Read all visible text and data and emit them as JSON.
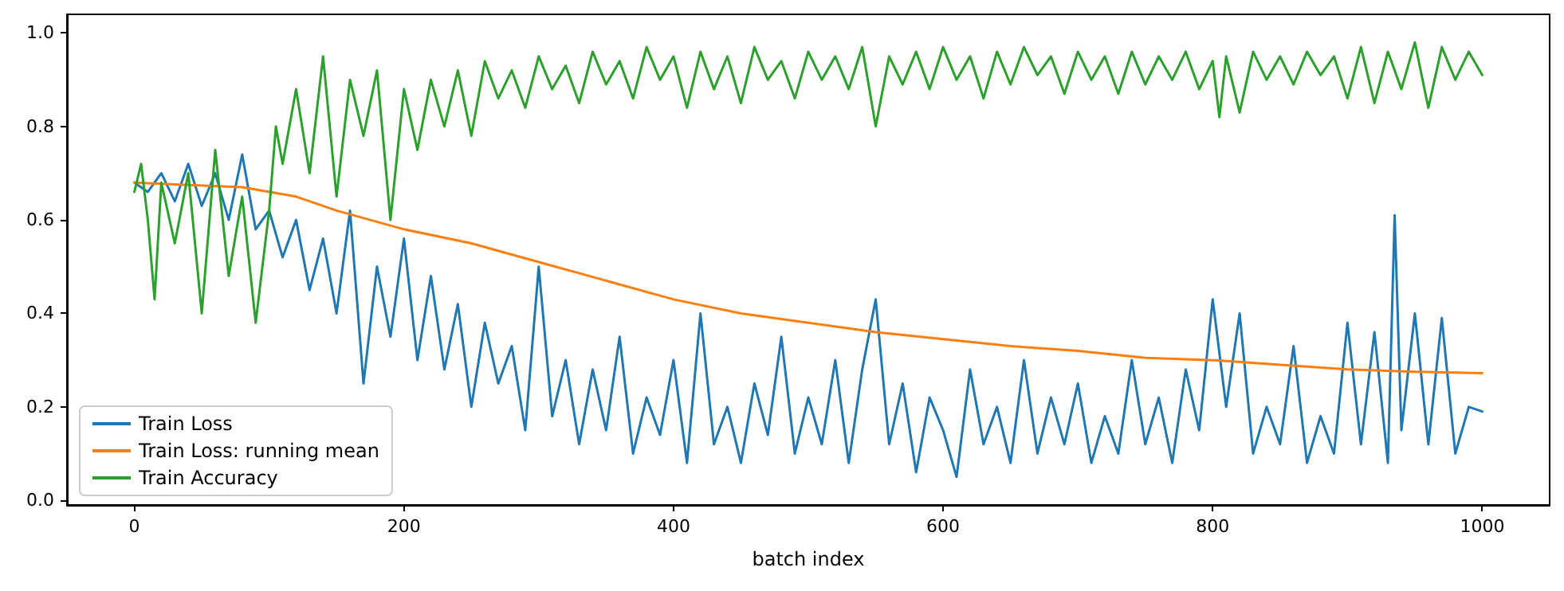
{
  "chart_data": {
    "type": "line",
    "xlabel": "batch index",
    "xlim": [
      -50,
      1050
    ],
    "xticks": [
      0,
      200,
      400,
      600,
      800,
      1000
    ],
    "ylim": [
      -0.01,
      1.04
    ],
    "yticks": [
      {
        "value": 0,
        "label": "0.0"
      },
      {
        "value": 0.2,
        "label": "0.2"
      },
      {
        "value": 0.4,
        "label": "0.4"
      },
      {
        "value": 0.6,
        "label": "0.6"
      },
      {
        "value": 0.8,
        "label": "0.8"
      },
      {
        "value": 1,
        "label": "1.0"
      }
    ],
    "grid": false,
    "legend": "bottom left",
    "marker": "none",
    "line_style": "solid",
    "series": [
      {
        "name": "Train Loss",
        "color": "#1f77b4",
        "x": [
          0,
          10,
          20,
          30,
          40,
          50,
          60,
          70,
          80,
          90,
          100,
          110,
          120,
          130,
          140,
          150,
          160,
          170,
          180,
          190,
          200,
          210,
          220,
          230,
          240,
          250,
          260,
          270,
          280,
          290,
          300,
          310,
          320,
          330,
          340,
          350,
          360,
          370,
          380,
          390,
          400,
          410,
          420,
          430,
          440,
          450,
          460,
          470,
          480,
          490,
          500,
          510,
          520,
          530,
          540,
          550,
          560,
          570,
          580,
          590,
          600,
          610,
          620,
          630,
          640,
          650,
          660,
          670,
          680,
          690,
          700,
          710,
          720,
          730,
          740,
          750,
          760,
          770,
          780,
          790,
          800,
          810,
          820,
          830,
          840,
          850,
          860,
          870,
          880,
          890,
          900,
          910,
          920,
          930,
          935,
          940,
          950,
          960,
          970,
          980,
          990,
          1000
        ],
        "values": [
          0.68,
          0.66,
          0.7,
          0.64,
          0.72,
          0.63,
          0.7,
          0.6,
          0.74,
          0.58,
          0.62,
          0.52,
          0.6,
          0.45,
          0.56,
          0.4,
          0.62,
          0.25,
          0.5,
          0.35,
          0.56,
          0.3,
          0.48,
          0.28,
          0.42,
          0.2,
          0.38,
          0.25,
          0.33,
          0.15,
          0.5,
          0.18,
          0.3,
          0.12,
          0.28,
          0.15,
          0.35,
          0.1,
          0.22,
          0.14,
          0.3,
          0.08,
          0.4,
          0.12,
          0.2,
          0.08,
          0.25,
          0.14,
          0.35,
          0.1,
          0.22,
          0.12,
          0.3,
          0.08,
          0.28,
          0.43,
          0.12,
          0.25,
          0.06,
          0.22,
          0.15,
          0.05,
          0.28,
          0.12,
          0.2,
          0.08,
          0.3,
          0.1,
          0.22,
          0.12,
          0.25,
          0.08,
          0.18,
          0.1,
          0.3,
          0.12,
          0.22,
          0.08,
          0.28,
          0.15,
          0.43,
          0.2,
          0.4,
          0.1,
          0.2,
          0.12,
          0.33,
          0.08,
          0.18,
          0.1,
          0.38,
          0.12,
          0.36,
          0.08,
          0.61,
          0.15,
          0.4,
          0.12,
          0.39,
          0.1,
          0.2,
          0.19
        ]
      },
      {
        "name": "Train Loss: running mean",
        "color": "#ff7f0e",
        "x": [
          0,
          40,
          80,
          120,
          150,
          200,
          250,
          300,
          350,
          400,
          450,
          500,
          550,
          600,
          650,
          700,
          750,
          800,
          850,
          900,
          950,
          1000
        ],
        "values": [
          0.68,
          0.675,
          0.67,
          0.65,
          0.62,
          0.58,
          0.55,
          0.51,
          0.47,
          0.43,
          0.4,
          0.38,
          0.36,
          0.345,
          0.33,
          0.32,
          0.305,
          0.3,
          0.29,
          0.28,
          0.275,
          0.272
        ]
      },
      {
        "name": "Train Accuracy",
        "color": "#2ca02c",
        "x": [
          0,
          5,
          10,
          15,
          20,
          30,
          40,
          50,
          60,
          70,
          80,
          90,
          100,
          105,
          110,
          120,
          130,
          140,
          150,
          160,
          170,
          180,
          190,
          200,
          210,
          220,
          230,
          240,
          250,
          260,
          270,
          280,
          290,
          300,
          310,
          320,
          330,
          340,
          350,
          360,
          370,
          380,
          390,
          400,
          410,
          420,
          430,
          440,
          450,
          460,
          470,
          480,
          490,
          500,
          510,
          520,
          530,
          540,
          550,
          560,
          570,
          580,
          590,
          600,
          610,
          620,
          630,
          640,
          650,
          660,
          670,
          680,
          690,
          700,
          710,
          720,
          730,
          740,
          750,
          760,
          770,
          780,
          790,
          800,
          805,
          810,
          820,
          830,
          840,
          850,
          860,
          870,
          880,
          890,
          900,
          910,
          920,
          930,
          940,
          950,
          960,
          970,
          980,
          990,
          1000
        ],
        "values": [
          0.66,
          0.72,
          0.6,
          0.43,
          0.68,
          0.55,
          0.7,
          0.4,
          0.75,
          0.48,
          0.65,
          0.38,
          0.62,
          0.8,
          0.72,
          0.88,
          0.7,
          0.95,
          0.65,
          0.9,
          0.78,
          0.92,
          0.6,
          0.88,
          0.75,
          0.9,
          0.8,
          0.92,
          0.78,
          0.94,
          0.86,
          0.92,
          0.84,
          0.95,
          0.88,
          0.93,
          0.85,
          0.96,
          0.89,
          0.94,
          0.86,
          0.97,
          0.9,
          0.95,
          0.84,
          0.96,
          0.88,
          0.95,
          0.85,
          0.97,
          0.9,
          0.94,
          0.86,
          0.96,
          0.9,
          0.95,
          0.88,
          0.97,
          0.8,
          0.95,
          0.89,
          0.96,
          0.88,
          0.97,
          0.9,
          0.95,
          0.86,
          0.96,
          0.89,
          0.97,
          0.91,
          0.95,
          0.87,
          0.96,
          0.9,
          0.95,
          0.87,
          0.96,
          0.89,
          0.95,
          0.9,
          0.96,
          0.88,
          0.94,
          0.82,
          0.95,
          0.83,
          0.96,
          0.9,
          0.95,
          0.89,
          0.96,
          0.91,
          0.95,
          0.86,
          0.97,
          0.85,
          0.96,
          0.88,
          0.98,
          0.84,
          0.97,
          0.9,
          0.96,
          0.91
        ]
      }
    ]
  }
}
